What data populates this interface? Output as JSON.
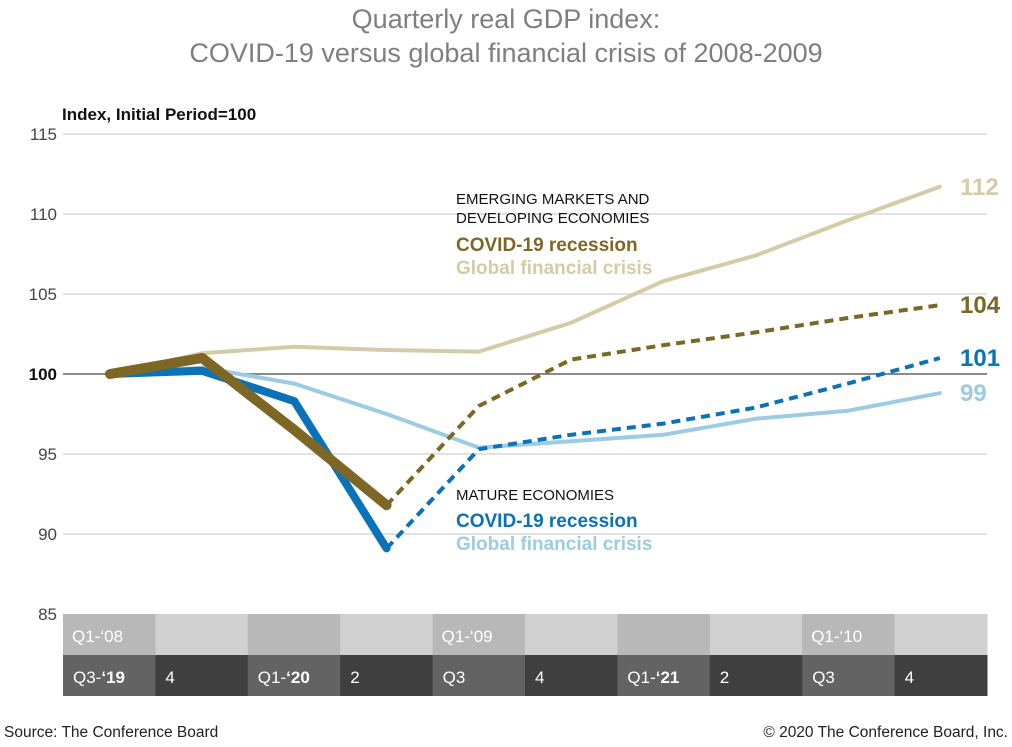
{
  "title_line1": "Quarterly real GDP index:",
  "title_line2": "COVID-19 versus global financial crisis of 2008-2009",
  "source": "Source: The Conference Board",
  "copyright": "© 2020 The Conference Board, Inc.",
  "colors": {
    "em_covid": "#7e6725",
    "em_gfc": "#d6cba7",
    "mature_covid": "#0a72b8",
    "mature_gfc": "#9ccbe4",
    "grid": "#d8d8d8",
    "baseline": "#8a8a8a",
    "band_top_dark": "#b8b8b8",
    "band_top_light": "#d0d0d0",
    "band_bottom_dark": "#3f3f3f",
    "band_bottom_light": "#636363"
  },
  "chart_data": {
    "type": "line",
    "ylabel": "Index, Initial Period=100",
    "ylim": [
      85,
      115
    ],
    "yticks": [
      115,
      110,
      105,
      100,
      95,
      90,
      85
    ],
    "x_count": 10,
    "x_labels_gfc": [
      {
        "pre": "Q1-‘08",
        "bold": ""
      },
      {
        "pre": "",
        "bold": ""
      },
      {
        "pre": "",
        "bold": ""
      },
      {
        "pre": "",
        "bold": ""
      },
      {
        "pre": "Q1-‘09",
        "bold": ""
      },
      {
        "pre": "",
        "bold": ""
      },
      {
        "pre": "",
        "bold": ""
      },
      {
        "pre": "",
        "bold": ""
      },
      {
        "pre": "Q1-‘10",
        "bold": ""
      },
      {
        "pre": "",
        "bold": ""
      }
    ],
    "x_labels_covid": [
      {
        "pre": "Q3-",
        "bold": "‘19"
      },
      {
        "pre": "4",
        "bold": ""
      },
      {
        "pre": "Q1-",
        "bold": "‘20"
      },
      {
        "pre": "2",
        "bold": ""
      },
      {
        "pre": "Q3",
        "bold": ""
      },
      {
        "pre": "4",
        "bold": ""
      },
      {
        "pre": "Q1-",
        "bold": "‘21"
      },
      {
        "pre": "2",
        "bold": ""
      },
      {
        "pre": "Q3",
        "bold": ""
      },
      {
        "pre": "4",
        "bold": ""
      }
    ],
    "series": [
      {
        "key": "em_gfc",
        "name": "Emerging markets and developing economies – Global financial crisis",
        "values": [
          100,
          101.3,
          101.7,
          101.5,
          101.4,
          103.2,
          105.8,
          107.4,
          109.6,
          111.7
        ],
        "end_label": "112"
      },
      {
        "key": "mature_gfc",
        "name": "Mature economies – Global financial crisis",
        "values": [
          100,
          100.4,
          99.4,
          97.5,
          95.4,
          95.8,
          96.2,
          97.2,
          97.7,
          98.8
        ],
        "end_label": "99"
      },
      {
        "key": "mature_covid",
        "name": "Mature economies – COVID-19 recession",
        "actual": [
          100,
          100.2,
          98.3,
          89.1
        ],
        "projected": [
          null,
          null,
          null,
          89.1,
          95.3,
          96.2,
          96.9,
          97.9,
          99.4,
          101.0
        ],
        "end_label": "101"
      },
      {
        "key": "em_covid",
        "name": "Emerging markets and developing economies – COVID-19 recession",
        "actual": [
          100,
          101.0,
          96.5,
          91.8
        ],
        "projected": [
          null,
          null,
          null,
          91.8,
          98.0,
          100.9,
          101.8,
          102.6,
          103.5,
          104.3
        ],
        "end_label": "104"
      }
    ],
    "legend": {
      "em_heading_1": "EMERGING MARKETS AND",
      "em_heading_2": "DEVELOPING ECONOMIES",
      "em_covid": "COVID-19 recession",
      "em_gfc": "Global financial crisis",
      "mature_heading": "MATURE ECONOMIES",
      "mature_covid": "COVID-19 recession",
      "mature_gfc": "Global financial crisis"
    }
  }
}
